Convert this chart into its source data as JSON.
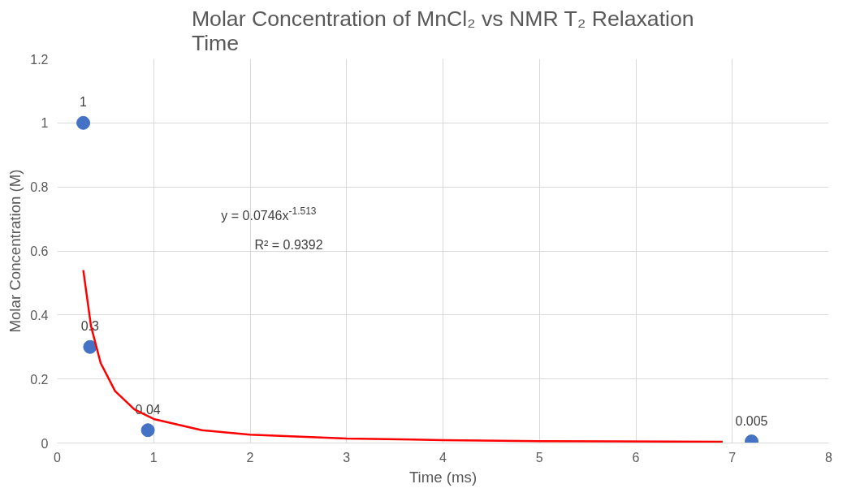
{
  "chart_data": {
    "type": "scatter",
    "title": "Molar Concentration of MnCl₂ vs NMR T₂ Relaxation Time",
    "xlabel": "Time (ms)",
    "ylabel": "Molar Concentration (M)",
    "xlim": [
      0,
      8
    ],
    "ylim": [
      0,
      1.2
    ],
    "xticks": [
      0,
      1,
      2,
      3,
      4,
      5,
      6,
      7,
      8
    ],
    "yticks": [
      0,
      0.2,
      0.4,
      0.6,
      0.8,
      1,
      1.2
    ],
    "grid": true,
    "annotations": [
      "y = 0.0746x$^{-1.513}$",
      "R² = 0.9392"
    ],
    "series": [
      {
        "color": "#4472c4",
        "marker": "circle",
        "x": [
          0.27,
          0.34,
          0.94,
          7.2
        ],
        "values": [
          1,
          0.3,
          0.04,
          0.005
        ],
        "value_labels": [
          "1",
          "0.3",
          "0.04",
          "0.005"
        ]
      },
      {
        "type": "line",
        "color": "#ff0000",
        "line_style": "solid",
        "x": [
          0.27,
          0.35,
          0.45,
          0.6,
          0.8,
          1,
          1.5,
          2,
          3,
          4,
          5,
          6.9
        ],
        "values": [
          0.54,
          0.365,
          0.25,
          0.162,
          0.105,
          0.075,
          0.04,
          0.026,
          0.014,
          0.009,
          0.006,
          0.004
        ]
      }
    ]
  }
}
